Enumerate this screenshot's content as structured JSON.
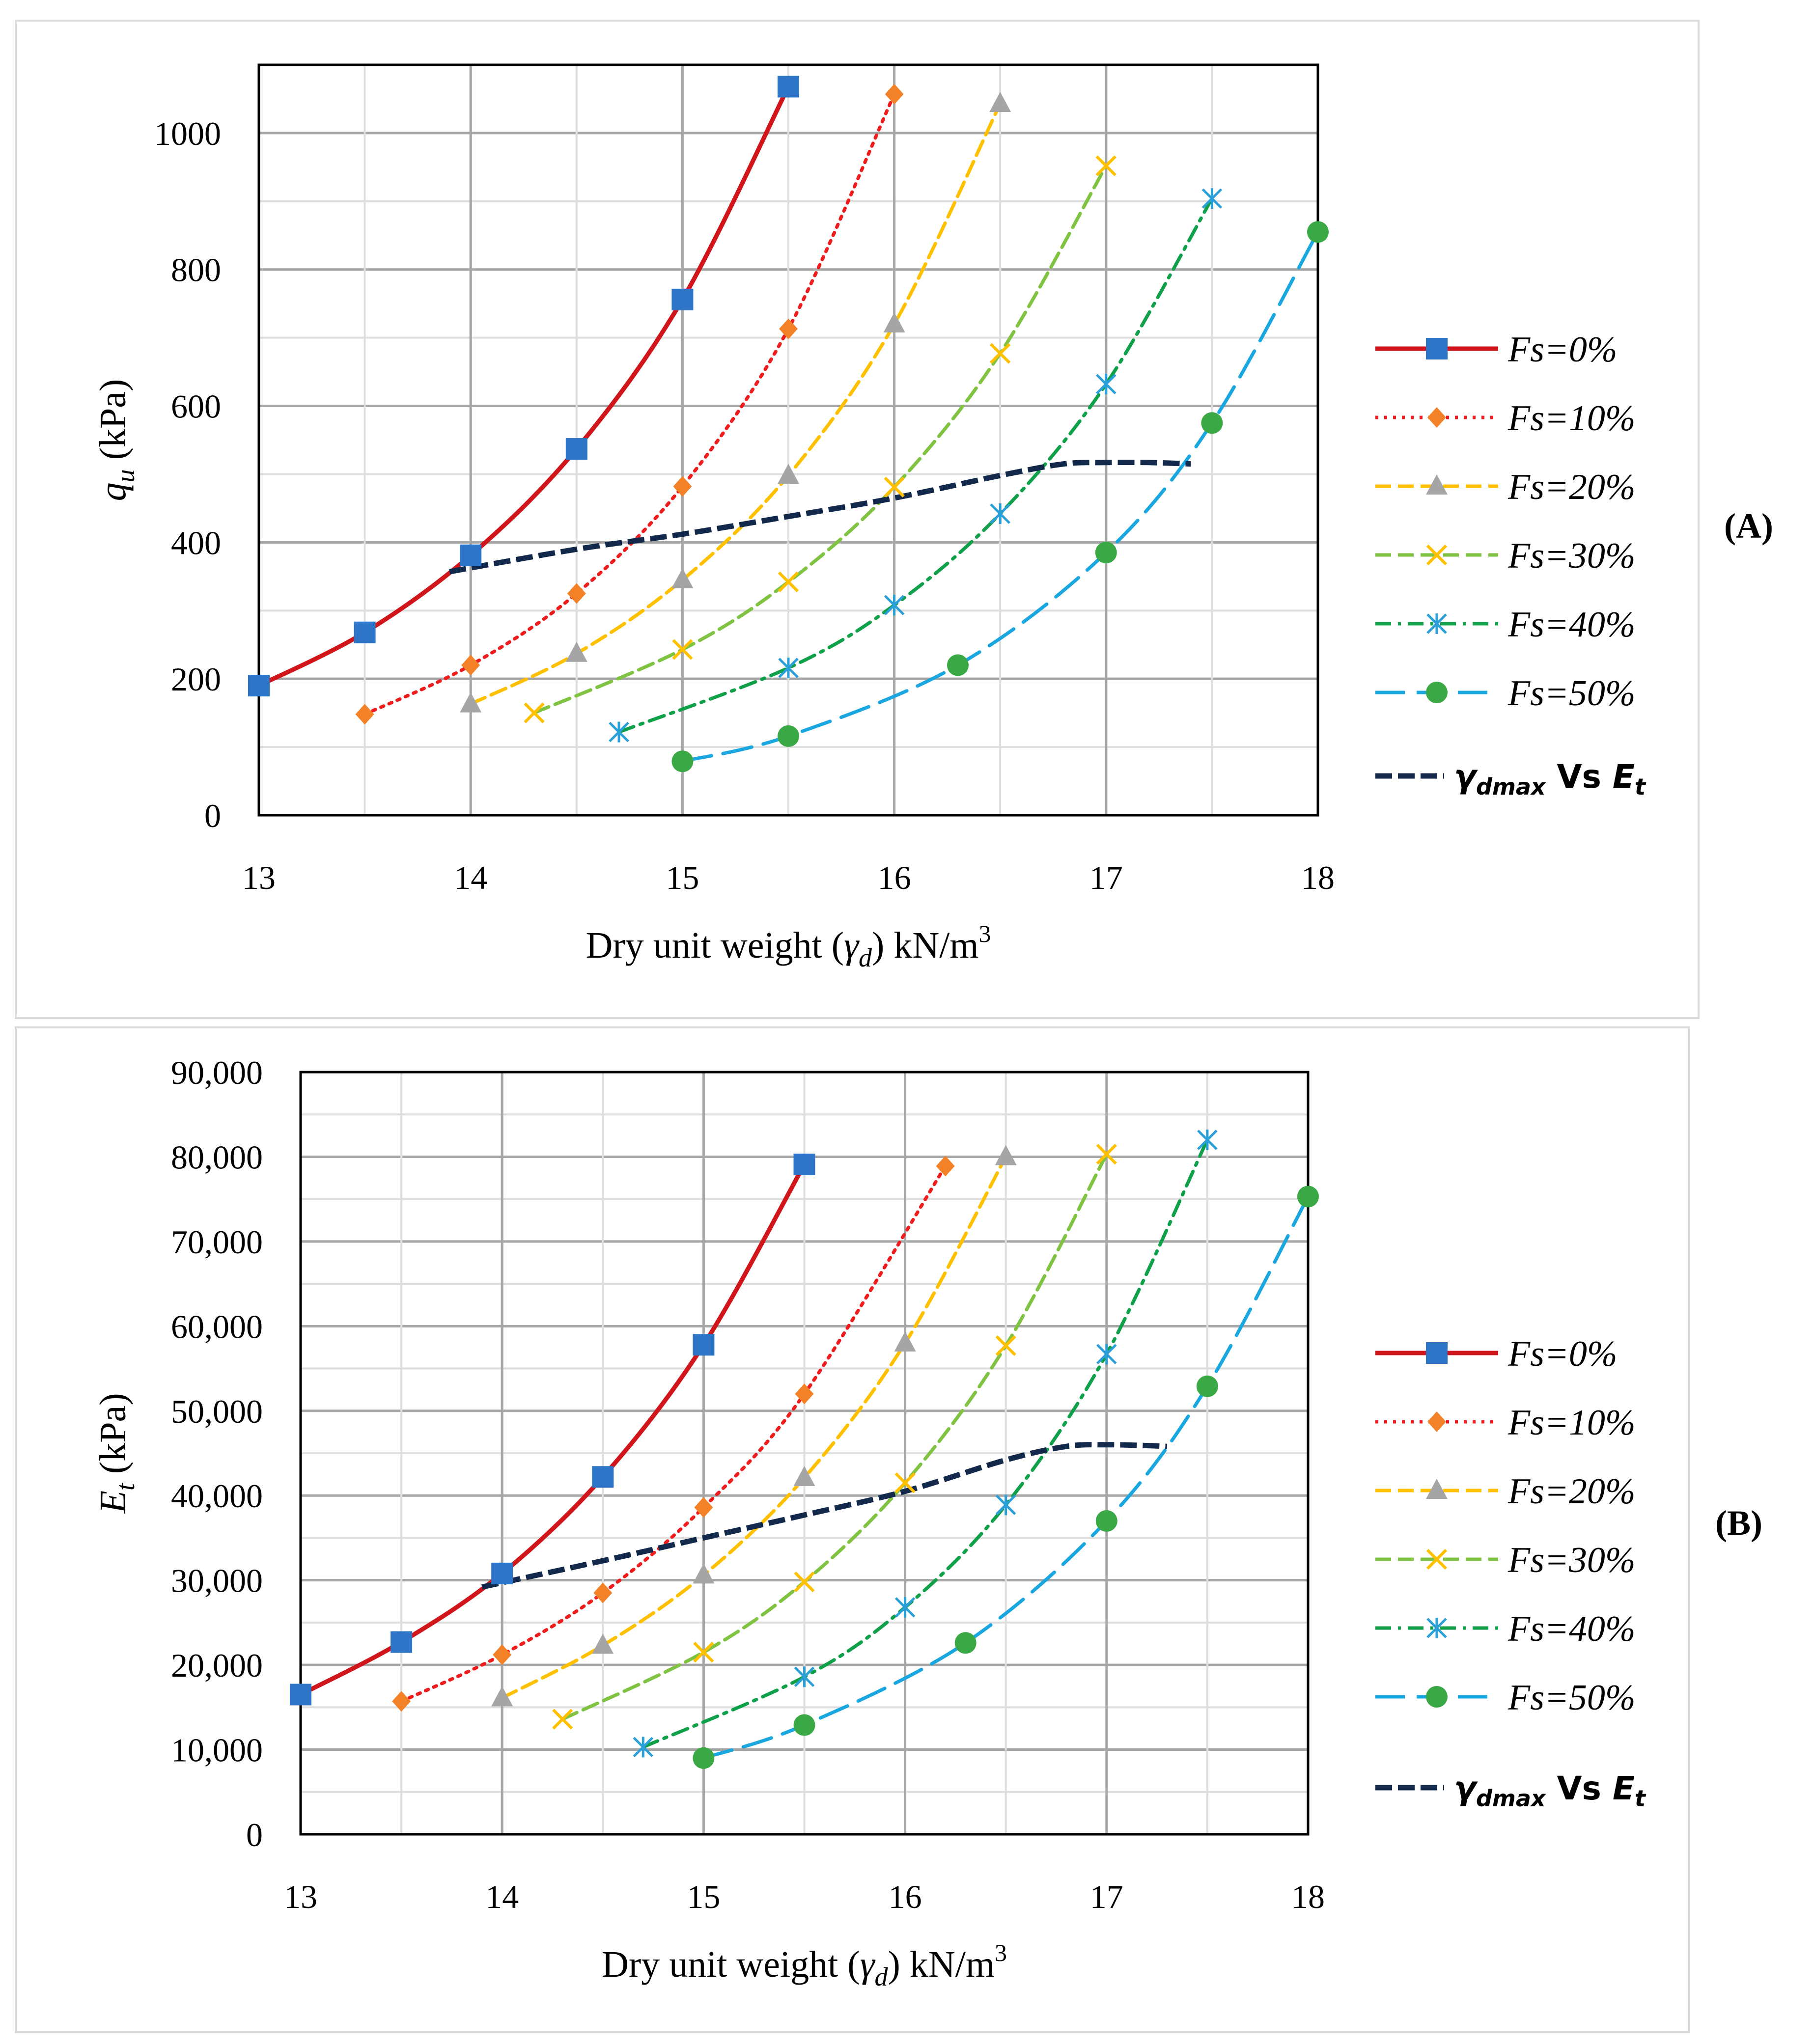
{
  "legend": {
    "series_labels": [
      "Fs=0%",
      "Fs=10%",
      "Fs=20%",
      "Fs=30%",
      "Fs=40%",
      "Fs=50%"
    ],
    "trend_label": {
      "gamma": "γ",
      "gamma_sub": "dmax",
      "vs": " Vs ",
      "e": "E",
      "e_sub": "t"
    }
  },
  "series_styles": [
    {
      "name": "Fs=0%",
      "color": "#d0161b",
      "marker": "square",
      "marker_color": "#2e75c8",
      "dash": "solid"
    },
    {
      "name": "Fs=10%",
      "color": "#ee1c1c",
      "marker": "diamond",
      "marker_color": "#f28128",
      "dash": "dotted"
    },
    {
      "name": "Fs=20%",
      "color": "#ffc000",
      "marker": "triangle",
      "marker_color": "#a5a5a5",
      "dash": "dash"
    },
    {
      "name": "Fs=30%",
      "color": "#80c342",
      "marker": "x",
      "marker_color": "#ffc000",
      "dash": "dash"
    },
    {
      "name": "Fs=40%",
      "color": "#10a04a",
      "marker": "star",
      "marker_color": "#2a9fd8",
      "dash": "dashdot"
    },
    {
      "name": "Fs=50%",
      "color": "#1aa7e0",
      "marker": "circle",
      "marker_color": "#3aa845",
      "dash": "longdash"
    },
    {
      "name": "trend",
      "color": "#13294b"
    }
  ],
  "chart_data": [
    {
      "id": "A",
      "type": "line",
      "panel_label": "(A)",
      "xlabel_parts": {
        "pre": "Dry unit weight (",
        "gamma": "γ",
        "sub": "d",
        "post": ") kN/m",
        "sup": "3"
      },
      "ylabel_parts": {
        "q": "q",
        "sub": "u",
        "post": " (kPa)"
      },
      "xlim": [
        13,
        18
      ],
      "ylim": [
        0,
        1100
      ],
      "x_ticks": [
        13,
        14,
        15,
        16,
        17,
        18
      ],
      "x_tick_labels": [
        "13",
        "14",
        "15",
        "16",
        "17",
        "18"
      ],
      "y_ticks": [
        0,
        200,
        400,
        600,
        800,
        1000
      ],
      "y_tick_labels": [
        "0",
        "200",
        "400",
        "600",
        "800",
        "1000"
      ],
      "y_minor_step": 100,
      "x_minor_step": 0.5,
      "series": [
        {
          "name": "Fs=0%",
          "x": [
            13,
            13.5,
            14,
            14.5,
            15,
            15.5
          ],
          "y": [
            190,
            268,
            381,
            537,
            756,
            1068
          ]
        },
        {
          "name": "Fs=10%",
          "x": [
            13.5,
            14,
            14.5,
            15,
            15.5,
            16
          ],
          "y": [
            148,
            220,
            325,
            482,
            713,
            1057
          ]
        },
        {
          "name": "Fs=20%",
          "x": [
            14,
            14.5,
            15,
            15.5,
            16,
            16.5
          ],
          "y": [
            163,
            237,
            345,
            498,
            720,
            1043
          ]
        },
        {
          "name": "Fs=30%",
          "x": [
            14.3,
            15,
            15.5,
            16,
            16.5,
            17
          ],
          "y": [
            150,
            243,
            342,
            481,
            677,
            952
          ]
        },
        {
          "name": "Fs=40%",
          "x": [
            14.7,
            15.5,
            16,
            16.5,
            17,
            17.5
          ],
          "y": [
            122,
            216,
            308,
            442,
            632,
            904
          ]
        },
        {
          "name": "Fs=50%",
          "x": [
            15,
            15.5,
            16.3,
            17,
            17.5,
            18
          ],
          "y": [
            79,
            116,
            220,
            385,
            575,
            855
          ]
        }
      ],
      "trend": {
        "x": [
          13.9,
          14.5,
          15,
          15.5,
          16,
          16.5,
          16.8,
          17,
          17.2,
          17.4
        ],
        "y": [
          357,
          390,
          412,
          438,
          465,
          498,
          515,
          517,
          517,
          515
        ]
      }
    },
    {
      "id": "B",
      "type": "line",
      "panel_label": "(B)",
      "xlabel_parts": {
        "pre": "Dry unit weight (",
        "gamma": "γ",
        "sub": "d",
        "post": ") kN/m",
        "sup": "3"
      },
      "ylabel_parts": {
        "q": "E",
        "sub": "t",
        "post": " (kPa)"
      },
      "xlim": [
        13,
        18
      ],
      "ylim": [
        0,
        90000
      ],
      "x_ticks": [
        13,
        14,
        15,
        16,
        17,
        18
      ],
      "x_tick_labels": [
        "13",
        "14",
        "15",
        "16",
        "17",
        "18"
      ],
      "y_ticks": [
        0,
        10000,
        20000,
        30000,
        40000,
        50000,
        60000,
        70000,
        80000,
        90000
      ],
      "y_tick_labels": [
        "0",
        "10,000",
        "20,000",
        "30,000",
        "40,000",
        "50,000",
        "60,000",
        "70,000",
        "80,000",
        "90,000"
      ],
      "y_minor_step": 5000,
      "x_minor_step": 0.5,
      "series": [
        {
          "name": "Fs=0%",
          "x": [
            13,
            13.5,
            14,
            14.5,
            15,
            15.5
          ],
          "y": [
            16500,
            22700,
            30800,
            42200,
            57800,
            79100
          ]
        },
        {
          "name": "Fs=10%",
          "x": [
            13.5,
            14,
            14.5,
            15,
            15.5,
            16.2
          ],
          "y": [
            15700,
            21200,
            28500,
            38600,
            52000,
            78900
          ]
        },
        {
          "name": "Fs=20%",
          "x": [
            14,
            14.5,
            15,
            15.5,
            16,
            16.5
          ],
          "y": [
            16100,
            22300,
            30600,
            42100,
            58000,
            80000
          ]
        },
        {
          "name": "Fs=30%",
          "x": [
            14.3,
            15,
            15.5,
            16,
            16.5,
            17
          ],
          "y": [
            13600,
            21500,
            29800,
            41500,
            57700,
            80300
          ]
        },
        {
          "name": "Fs=40%",
          "x": [
            14.7,
            15.5,
            16,
            16.5,
            17,
            17.5
          ],
          "y": [
            10300,
            18600,
            26800,
            38900,
            56700,
            82000
          ]
        },
        {
          "name": "Fs=50%",
          "x": [
            15,
            15.5,
            16.3,
            17,
            17.5,
            18
          ],
          "y": [
            9000,
            12900,
            22600,
            37000,
            52900,
            75300
          ]
        }
      ],
      "trend": {
        "x": [
          13.9,
          14.5,
          15,
          15.5,
          16,
          16.5,
          16.8,
          17,
          17.2,
          17.3
        ],
        "y": [
          29200,
          32300,
          35000,
          37700,
          40500,
          44200,
          45800,
          46000,
          45900,
          45800
        ]
      }
    }
  ]
}
